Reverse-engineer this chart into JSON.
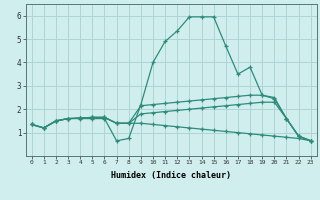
{
  "xlabel": "Humidex (Indice chaleur)",
  "x_values": [
    0,
    1,
    2,
    3,
    4,
    5,
    6,
    7,
    8,
    9,
    10,
    11,
    12,
    13,
    14,
    15,
    16,
    17,
    18,
    19,
    20,
    21,
    22,
    23
  ],
  "line1_y": [
    1.35,
    1.2,
    1.5,
    1.6,
    1.6,
    1.6,
    1.6,
    0.65,
    0.75,
    2.2,
    4.0,
    4.9,
    5.35,
    5.95,
    5.95,
    5.95,
    4.7,
    3.5,
    3.8,
    2.6,
    2.45,
    1.6,
    0.85,
    0.65
  ],
  "line2_y": [
    1.35,
    1.2,
    1.5,
    1.6,
    1.62,
    1.65,
    1.65,
    1.4,
    1.4,
    2.15,
    2.2,
    2.25,
    2.3,
    2.35,
    2.4,
    2.45,
    2.5,
    2.55,
    2.6,
    2.6,
    2.5,
    1.6,
    0.85,
    0.65
  ],
  "line3_y": [
    1.35,
    1.2,
    1.5,
    1.6,
    1.62,
    1.65,
    1.65,
    1.4,
    1.4,
    1.8,
    1.85,
    1.9,
    1.95,
    2.0,
    2.05,
    2.1,
    2.15,
    2.2,
    2.25,
    2.3,
    2.3,
    1.6,
    0.85,
    0.65
  ],
  "line4_y": [
    1.35,
    1.2,
    1.5,
    1.6,
    1.62,
    1.65,
    1.65,
    1.4,
    1.4,
    1.4,
    1.35,
    1.3,
    1.25,
    1.2,
    1.15,
    1.1,
    1.05,
    1.0,
    0.95,
    0.9,
    0.85,
    0.8,
    0.75,
    0.65
  ],
  "line_color": "#2e8b7a",
  "bg_color": "#d0eeee",
  "grid_color": "#aed4d4",
  "ylim": [
    0,
    6.5
  ],
  "xlim": [
    -0.5,
    23.5
  ],
  "yticks": [
    1,
    2,
    3,
    4,
    5,
    6
  ],
  "xtick_labels": [
    "0",
    "1",
    "2",
    "3",
    "4",
    "5",
    "6",
    "7",
    "8",
    "9",
    "10",
    "11",
    "12",
    "13",
    "14",
    "15",
    "16",
    "17",
    "18",
    "19",
    "20",
    "21",
    "22",
    "23"
  ]
}
